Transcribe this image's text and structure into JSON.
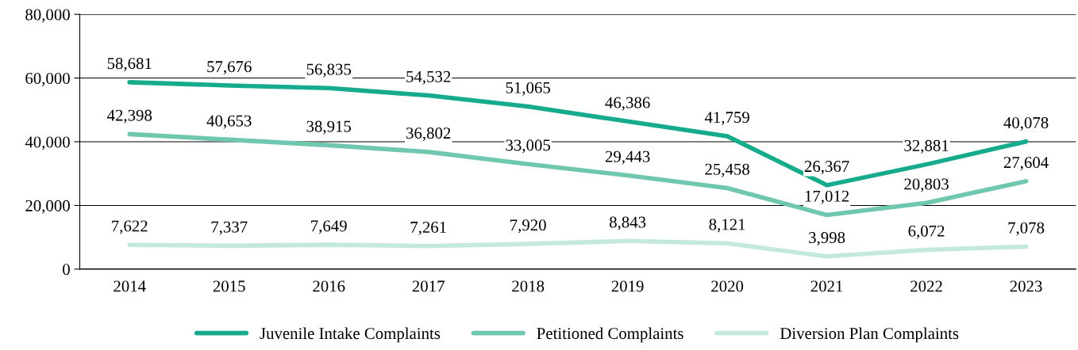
{
  "chart_data": {
    "type": "line",
    "categories": [
      "2014",
      "2015",
      "2016",
      "2017",
      "2018",
      "2019",
      "2020",
      "2021",
      "2022",
      "2023"
    ],
    "series": [
      {
        "name": "Juvenile Intake Complaints",
        "color": "#16ab8c",
        "values": [
          58681,
          57676,
          56835,
          54532,
          51065,
          46386,
          41759,
          26367,
          32881,
          40078
        ],
        "value_labels": [
          "58,681",
          "57,676",
          "56,835",
          "54,532",
          "51,065",
          "46,386",
          "41,759",
          "26,367",
          "32,881",
          "40,078"
        ]
      },
      {
        "name": "Petitioned Complaints",
        "color": "#70c7b0",
        "values": [
          42398,
          40653,
          38915,
          36802,
          33005,
          29443,
          25458,
          17012,
          20803,
          27604
        ],
        "value_labels": [
          "42,398",
          "40,653",
          "38,915",
          "36,802",
          "33,005",
          "29,443",
          "25,458",
          "17,012",
          "20,803",
          "27,604"
        ]
      },
      {
        "name": "Diversion Plan Complaints",
        "color": "#c3e8dc",
        "values": [
          7622,
          7337,
          7649,
          7261,
          7920,
          8843,
          8121,
          3998,
          6072,
          7078
        ],
        "value_labels": [
          "7,622",
          "7,337",
          "7,649",
          "7,261",
          "7,920",
          "8,843",
          "8,121",
          "3,998",
          "6,072",
          "7,078"
        ]
      }
    ],
    "ylim": [
      0,
      80000
    ],
    "yticks": [
      {
        "value": 0,
        "label": "0"
      },
      {
        "value": 20000,
        "label": "20,000"
      },
      {
        "value": 40000,
        "label": "40,000"
      },
      {
        "value": 60000,
        "label": "60,000"
      },
      {
        "value": 80000,
        "label": "80,000"
      }
    ],
    "grid": "y",
    "legend": "bottom",
    "marker": "none",
    "line_style": "solid"
  }
}
